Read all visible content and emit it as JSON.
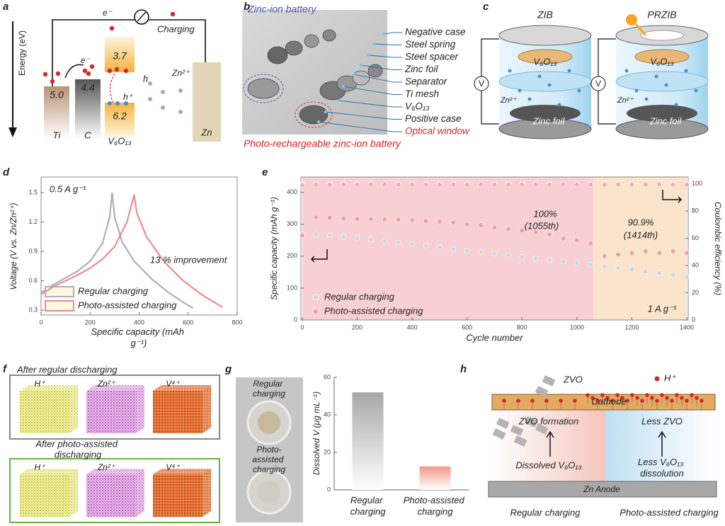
{
  "panel_letters": [
    "a",
    "b",
    "c",
    "d",
    "e",
    "f",
    "g",
    "h"
  ],
  "panel_a": {
    "axis_label": "Energy (eV)",
    "electron_top": "e⁻",
    "electron_left": "e⁻",
    "process": "Charging",
    "materials": [
      "Ti",
      "C",
      "V₆O₁₃",
      "Zn"
    ],
    "levels": [
      "5.0",
      "4.4",
      "3.7",
      "6.2"
    ],
    "hole": "h",
    "hole_plus": "h⁺",
    "ion": "Zn²⁺"
  },
  "panel_b": {
    "title": "Zinc-ion battery",
    "parts": [
      "Negative case",
      "Steel spring",
      "Steel spacer",
      "Zinc foil",
      "Separator",
      "Ti mesh",
      "V₆O₁₃",
      "Positive case",
      "Optical window"
    ],
    "caption": "Photo-rechargeable zinc-ion battery"
  },
  "panel_c": {
    "cells": [
      {
        "name": "ZIB",
        "cathode": "V₆O₁₃",
        "ion": "Zn²⁺",
        "anode": "Zinc foil",
        "meter": "V"
      },
      {
        "name": "PRZIB",
        "cathode": "V₆O₁₃",
        "ion": "Zn²⁺",
        "anode": "Zinc foil",
        "meter": "V"
      }
    ]
  },
  "chart_data": [
    {
      "type": "line",
      "annotations": [
        "0.5 A g⁻¹",
        "13 % improvement"
      ],
      "xlabel": "Specific capacity (mAh g⁻¹)",
      "ylabel": "Voltage (V vs. Zn/Zn²⁺)",
      "xlim": [
        0,
        800
      ],
      "ylim": [
        0.25,
        1.66
      ],
      "xticks": [
        0,
        200,
        400,
        600,
        800
      ],
      "yticks": [
        0.3,
        0.6,
        0.9,
        1.2,
        1.5
      ],
      "series": [
        {
          "name": "Regular charging",
          "color": "#a9b0bd",
          "x": [
            0,
            50,
            100,
            150,
            200,
            250,
            280,
            290,
            300,
            330,
            380,
            450,
            520,
            580,
            620
          ],
          "y": [
            0.48,
            0.56,
            0.63,
            0.7,
            0.8,
            0.98,
            1.25,
            1.5,
            1.25,
            1.0,
            0.8,
            0.62,
            0.48,
            0.38,
            0.32
          ]
        },
        {
          "name": "Photo-assisted charging",
          "color": "#f08a8a",
          "x": [
            0,
            50,
            100,
            150,
            200,
            250,
            300,
            350,
            380,
            390,
            430,
            500,
            580,
            660,
            740
          ],
          "y": [
            0.46,
            0.54,
            0.6,
            0.66,
            0.73,
            0.82,
            0.95,
            1.2,
            1.48,
            1.3,
            1.05,
            0.8,
            0.6,
            0.45,
            0.33
          ]
        }
      ]
    },
    {
      "type": "scatter",
      "annotations": [
        "100%",
        "(1055th)",
        "90.9%",
        "(1414th)",
        "1 A g⁻¹"
      ],
      "xlabel": "Cycle number",
      "ylabel": "Specific capacity (mAh g⁻¹)",
      "y2label": "Coulombic efficiency (%)",
      "xlim": [
        -5,
        1405
      ],
      "ylim": [
        0,
        448
      ],
      "y2lim": [
        0,
        105
      ],
      "xticks": [
        0,
        200,
        400,
        600,
        800,
        1000,
        1200,
        1400
      ],
      "yticks": [
        0,
        100,
        200,
        300,
        400
      ],
      "y2ticks": [
        0,
        20,
        40,
        60,
        80,
        100
      ],
      "regions": [
        {
          "start": 0,
          "end": 1060,
          "color": "#f8d0d4"
        },
        {
          "start": 1060,
          "end": 1400,
          "color": "#fbe4cc"
        }
      ],
      "x": [
        0,
        50,
        100,
        150,
        200,
        250,
        300,
        350,
        400,
        450,
        500,
        550,
        600,
        650,
        700,
        750,
        800,
        850,
        900,
        950,
        1000,
        1050,
        1100,
        1150,
        1200,
        1250,
        1300,
        1350,
        1400
      ],
      "series": [
        {
          "name": "Regular charging",
          "color": "#c9d6e6",
          "values": [
            270,
            268,
            265,
            261,
            257,
            252,
            248,
            243,
            238,
            233,
            228,
            223,
            218,
            213,
            208,
            203,
            198,
            193,
            188,
            183,
            178,
            173,
            168,
            163,
            158,
            152,
            147,
            141,
            135
          ]
        },
        {
          "name": "Photo-assisted charging",
          "color": "#f19a9a",
          "values": [
            265,
            322,
            320,
            318,
            317,
            316,
            315,
            314,
            313,
            310,
            308,
            305,
            300,
            297,
            290,
            285,
            280,
            275,
            268,
            255,
            250,
            240,
            200,
            205,
            210,
            215,
            210,
            215,
            210
          ]
        },
        {
          "color": "#dde4ee",
          "axis": "y2",
          "values": [
            100,
            100,
            100,
            100,
            100,
            100,
            100,
            100,
            100,
            100,
            100,
            100,
            100,
            100,
            100,
            100,
            100,
            100,
            100,
            100,
            100,
            100,
            100,
            100,
            100,
            100,
            100,
            100,
            100
          ]
        },
        {
          "color": "#f4aaaa",
          "axis": "y2",
          "values": [
            99,
            99.5,
            99.3,
            99.5,
            99.4,
            99.5,
            99.6,
            99.4,
            99.5,
            99.5,
            99.3,
            99.5,
            99.4,
            99.6,
            99.5,
            99.4,
            99.5,
            99.5,
            99.3,
            99.6,
            99.5,
            99.4,
            99.5,
            99.6,
            99.4,
            99.5,
            99.5,
            99.4,
            99.5
          ]
        }
      ]
    },
    {
      "type": "bar",
      "ylabel": "Dissolved V (μg mL⁻¹)",
      "categories": [
        "Regular charging",
        "Photo-assisted charging"
      ],
      "values": [
        52,
        12.5
      ],
      "colors": [
        "#a8a8a8",
        "#f29a88"
      ],
      "ylim": [
        0,
        60
      ],
      "yticks": [
        0,
        20,
        40,
        60
      ]
    }
  ],
  "panel_f": {
    "groups": [
      {
        "title": "After regular discharging",
        "elements": [
          "H⁺",
          "Zn²⁺",
          "V⁴⁺"
        ]
      },
      {
        "title": "After photo-assisted discharging",
        "elements": [
          "H⁺",
          "Zn²⁺",
          "V⁴⁺"
        ]
      }
    ]
  },
  "panel_g": {
    "photo_labels": [
      "Regular charging",
      "Photo-assisted charging"
    ]
  },
  "panel_h": {
    "particles": "ZVO",
    "ion": "H⁺",
    "cathode": "Cathode",
    "left_effect": "ZVO formation",
    "right_effect": "Less ZVO",
    "left_cause": "Dissolved V₆O₁₃",
    "right_cause": "Less V₆O₁₃ dissolution",
    "anode": "Zn Anode",
    "left_condition": "Regular charging",
    "right_condition": "Photo-assisted charging"
  }
}
